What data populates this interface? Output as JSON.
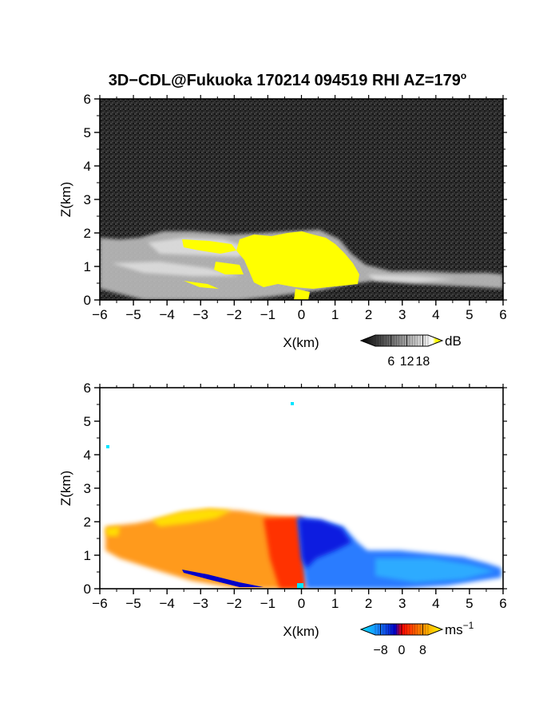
{
  "chart_data": [
    {
      "type": "heatmap",
      "title": "3D−CDL@Fukuoka 170214 094519 RHI AZ=179",
      "title_superscript": "o",
      "xlabel": "X(km)",
      "ylabel": "Z(km)",
      "xlim": [
        -6,
        6
      ],
      "ylim": [
        0,
        6
      ],
      "x_ticks": [
        -6,
        -5,
        -4,
        -3,
        -2,
        -1,
        0,
        1,
        2,
        3,
        4,
        5,
        6
      ],
      "y_ticks": [
        0,
        1,
        2,
        3,
        4,
        5,
        6
      ],
      "x_tick_labels": [
        "−6",
        "−5",
        "−4",
        "−3",
        "−2",
        "−1",
        "0",
        "1",
        "2",
        "3",
        "4",
        "5",
        "6"
      ],
      "y_tick_labels": [
        "0",
        "1",
        "2",
        "3",
        "4",
        "5",
        "6"
      ],
      "colorbar": {
        "unit": "dB",
        "ticks": [
          6,
          12,
          18
        ],
        "tick_labels": [
          "6",
          "12",
          "18"
        ],
        "range": [
          0,
          20
        ],
        "colors": [
          "#000000",
          "#ffffff",
          "#ffff00"
        ]
      },
      "background": "#2a2a2a",
      "saturation_color": "#ffff00"
    },
    {
      "type": "heatmap",
      "title": "",
      "xlabel": "X(km)",
      "ylabel": "Z(km)",
      "xlim": [
        -6,
        6
      ],
      "ylim": [
        0,
        6
      ],
      "x_ticks": [
        -6,
        -5,
        -4,
        -3,
        -2,
        -1,
        0,
        1,
        2,
        3,
        4,
        5,
        6
      ],
      "y_ticks": [
        0,
        1,
        2,
        3,
        4,
        5,
        6
      ],
      "x_tick_labels": [
        "−6",
        "−5",
        "−4",
        "−3",
        "−2",
        "−1",
        "0",
        "1",
        "2",
        "3",
        "4",
        "5",
        "6"
      ],
      "y_tick_labels": [
        "0",
        "1",
        "2",
        "3",
        "4",
        "5",
        "6"
      ],
      "colorbar": {
        "unit": "ms",
        "unit_superscript": "−1",
        "ticks": [
          -8,
          0,
          8
        ],
        "tick_labels": [
          "−8",
          "0",
          "8"
        ],
        "range": [
          -10,
          10
        ],
        "colors": [
          "#00e5ff",
          "#1060ff",
          "#0000c0",
          "#ff0000",
          "#ff8c00",
          "#ffff00"
        ]
      },
      "negative_side": "x > 0 (blue)",
      "positive_side": "x < 0 (red/orange)"
    }
  ]
}
